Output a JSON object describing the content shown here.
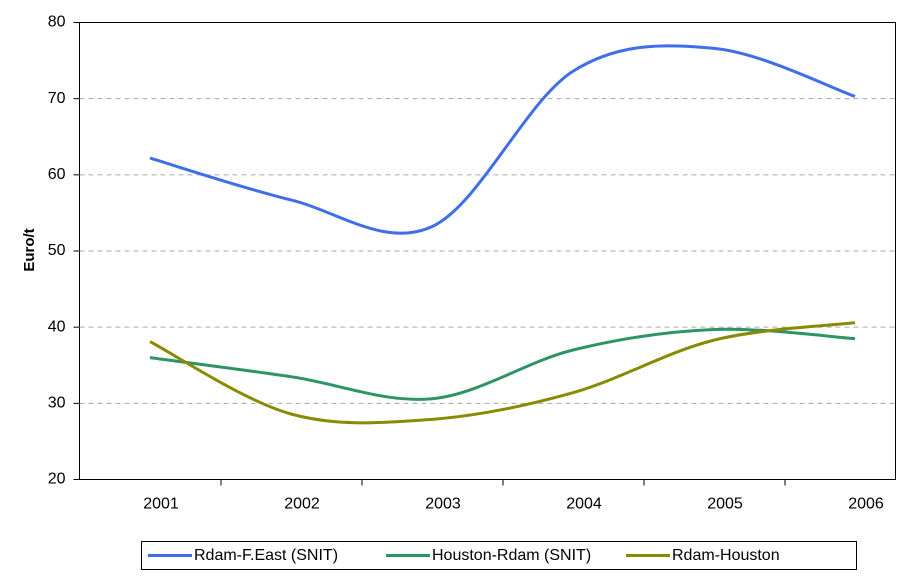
{
  "chart_data": {
    "type": "line",
    "y_label": "Euro/t",
    "categories": [
      "2001",
      "2002",
      "2003",
      "2004",
      "2005",
      "2006"
    ],
    "series": [
      {
        "name": "Rdam-F.East (SNIT)",
        "color": "#3f6fe8",
        "values": [
          62.2,
          56.7,
          53.2,
          73.6,
          76.6,
          70.3
        ]
      },
      {
        "name": "Houston-Rdam (SNIT)",
        "color": "#2e9464",
        "values": [
          36.0,
          33.5,
          30.6,
          37.0,
          39.7,
          38.5
        ]
      },
      {
        "name": "Rdam-Houston",
        "color": "#8a8a00",
        "values": [
          38.1,
          28.6,
          27.9,
          31.4,
          38.3,
          40.6
        ]
      }
    ],
    "ylim": [
      20,
      80
    ],
    "yticks": [
      20,
      30,
      40,
      50,
      60,
      70,
      80
    ],
    "grid": true,
    "smooth": true,
    "legend": "bottom"
  }
}
